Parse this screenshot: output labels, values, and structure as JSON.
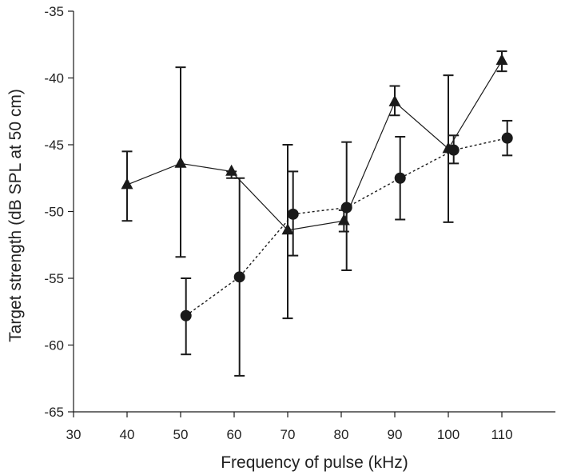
{
  "chart_data": {
    "type": "scatter",
    "title": "",
    "xlabel": "Frequency of pulse (kHz)",
    "ylabel": "Target strength (dB SPL at 50 cm)",
    "xlim": [
      30,
      120
    ],
    "ylim": [
      -65,
      -35
    ],
    "x_ticks": [
      "30",
      "40",
      "50",
      "60",
      "70",
      "80",
      "90",
      "100",
      "110"
    ],
    "y_ticks": [
      "-35",
      "-40",
      "-45",
      "-50",
      "-55",
      "-60",
      "-65"
    ],
    "grid": false,
    "legend": "none",
    "series": [
      {
        "marker": "triangle",
        "line": "solid",
        "color": "#1a1a1a",
        "points": [
          {
            "x": 40,
            "y": -48.0,
            "err_low": -50.7,
            "err_high": -45.5
          },
          {
            "x": 50,
            "y": -46.4,
            "err_low": -53.4,
            "err_high": -39.2
          },
          {
            "x": 59.5,
            "y": -47.0,
            "err_low": -47.5,
            "err_high": -47.0
          },
          {
            "x": 70,
            "y": -51.4,
            "err_low": -58.0,
            "err_high": -45.0
          },
          {
            "x": 80.5,
            "y": -50.7,
            "err_low": -51.5,
            "err_high": -49.9
          },
          {
            "x": 90,
            "y": -41.8,
            "err_low": -42.8,
            "err_high": -40.6
          },
          {
            "x": 100,
            "y": -45.3,
            "err_low": -50.8,
            "err_high": -39.8
          },
          {
            "x": 110,
            "y": -38.7,
            "err_low": -39.5,
            "err_high": -38.0
          }
        ]
      },
      {
        "marker": "circle",
        "line": "dotted",
        "color": "#1a1a1a",
        "points": [
          {
            "x": 51,
            "y": -57.8,
            "err_low": -60.7,
            "err_high": -55.0
          },
          {
            "x": 61,
            "y": -54.9,
            "err_low": -62.3,
            "err_high": -47.5
          },
          {
            "x": 71,
            "y": -50.2,
            "err_low": -53.3,
            "err_high": -47.0
          },
          {
            "x": 81,
            "y": -49.7,
            "err_low": -54.4,
            "err_high": -44.8
          },
          {
            "x": 91,
            "y": -47.5,
            "err_low": -50.6,
            "err_high": -44.4
          },
          {
            "x": 101,
            "y": -45.4,
            "err_low": -46.4,
            "err_high": -44.3
          },
          {
            "x": 111,
            "y": -44.5,
            "err_low": -45.8,
            "err_high": -43.2
          }
        ]
      }
    ]
  }
}
